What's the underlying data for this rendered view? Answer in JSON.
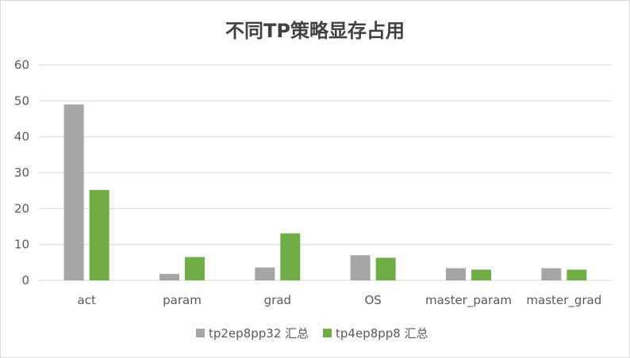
{
  "chart_data": {
    "type": "bar",
    "title": "不同TP策略显存占用",
    "categories": [
      "act",
      "param",
      "grad",
      "OS",
      "master_param",
      "master_grad"
    ],
    "series": [
      {
        "name": "tp2ep8pp32 汇总",
        "color": "#a5a5a5",
        "values": [
          49,
          1.8,
          3.6,
          7.0,
          3.4,
          3.4
        ]
      },
      {
        "name": "tp4ep8pp8 汇总",
        "color": "#70ad47",
        "values": [
          25.2,
          6.5,
          13.1,
          6.3,
          3.0,
          3.0
        ]
      }
    ],
    "ylim": [
      0,
      60
    ],
    "yticks": [
      0,
      10,
      20,
      30,
      40,
      50,
      60
    ],
    "grid": true,
    "legend": "bottom",
    "xlabel": "",
    "ylabel": ""
  }
}
